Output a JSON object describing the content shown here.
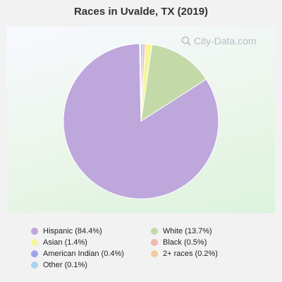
{
  "chart_data": {
    "type": "pie",
    "title": "Races in Uvalde, TX (2019)",
    "slices": [
      {
        "label": "Hispanic (84.4%)",
        "value": 84.4,
        "color": "#bda7db"
      },
      {
        "label": "White (13.7%)",
        "value": 13.7,
        "color": "#c3d9a8"
      },
      {
        "label": "Asian (1.4%)",
        "value": 1.4,
        "color": "#f5f59a"
      },
      {
        "label": "Black (0.5%)",
        "value": 0.5,
        "color": "#f0b8b0"
      },
      {
        "label": "American Indian (0.4%)",
        "value": 0.4,
        "color": "#9fa6e8"
      },
      {
        "label": "2+ races (0.2%)",
        "value": 0.2,
        "color": "#f2cc9e"
      },
      {
        "label": "Other (0.1%)",
        "value": 0.1,
        "color": "#a8d2f2"
      }
    ],
    "draw_order": [
      4,
      3,
      2,
      1,
      0,
      5,
      6
    ],
    "legend_position": "bottom",
    "watermark": "City-Data.com"
  }
}
